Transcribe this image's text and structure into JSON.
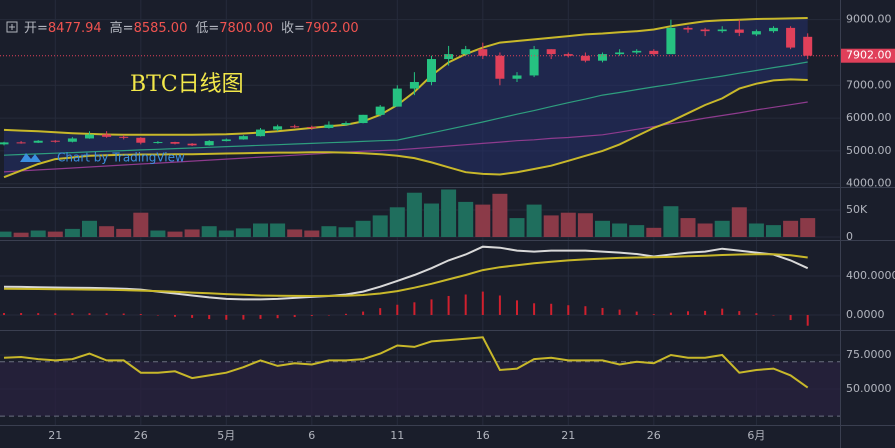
{
  "header": [
    {
      "label": "开=",
      "value": "8477.94"
    },
    {
      "label": "高=",
      "value": "8585.00"
    },
    {
      "label": "低=",
      "value": "7800.00"
    },
    {
      "label": "收=",
      "value": "7902.00"
    }
  ],
  "chart_data": [
    {
      "type": "candlestick",
      "title": "BTC日线图",
      "credit": "Chart by TradingView",
      "categories": [
        null,
        null,
        null,
        "21",
        null,
        null,
        null,
        null,
        "26",
        null,
        null,
        null,
        null,
        "5月",
        null,
        null,
        null,
        null,
        "6",
        null,
        null,
        null,
        null,
        "11",
        null,
        null,
        null,
        null,
        "16",
        null,
        null,
        null,
        null,
        "21",
        null,
        null,
        null,
        null,
        "26",
        null,
        null,
        null,
        null,
        null,
        "6月",
        null,
        null,
        null
      ],
      "open": [
        5200,
        5260,
        5250,
        5310,
        5280,
        5380,
        5500,
        5430,
        5400,
        5250,
        5270,
        5220,
        5170,
        5300,
        5350,
        5450,
        5650,
        5750,
        5730,
        5700,
        5800,
        5850,
        6100,
        6350,
        6900,
        7100,
        7800,
        7950,
        8100,
        7900,
        7200,
        7300,
        8100,
        7950,
        7900,
        7750,
        7950,
        8000,
        8050,
        7950,
        8750,
        8700,
        8650,
        8700,
        8550,
        8650,
        8750,
        8477.94
      ],
      "high": [
        5280,
        5300,
        5330,
        5330,
        5420,
        5600,
        5600,
        5480,
        5420,
        5300,
        5280,
        5240,
        5330,
        5380,
        5480,
        5700,
        5800,
        5800,
        5770,
        5900,
        5900,
        6100,
        6400,
        7000,
        7400,
        7900,
        8200,
        8200,
        8300,
        8000,
        7400,
        8200,
        8100,
        8000,
        8000,
        8000,
        8100,
        8100,
        8100,
        9000,
        8800,
        8750,
        8800,
        9000,
        8700,
        8800,
        8800,
        8585
      ],
      "low": [
        5170,
        5220,
        5240,
        5250,
        5260,
        5370,
        5400,
        5350,
        5200,
        5220,
        5200,
        5150,
        5160,
        5290,
        5340,
        5440,
        5600,
        5700,
        5640,
        5680,
        5760,
        5840,
        6050,
        6350,
        6700,
        7000,
        7600,
        7900,
        7800,
        7000,
        7100,
        7250,
        7800,
        7850,
        7700,
        7700,
        7900,
        7950,
        7900,
        7950,
        8600,
        8500,
        8600,
        8500,
        8500,
        8600,
        8100,
        7800
      ],
      "close": [
        5260,
        5250,
        5310,
        5280,
        5380,
        5500,
        5430,
        5400,
        5250,
        5270,
        5220,
        5170,
        5300,
        5350,
        5450,
        5650,
        5750,
        5730,
        5700,
        5800,
        5850,
        6100,
        6350,
        6900,
        7100,
        7800,
        7950,
        8100,
        7900,
        7200,
        7300,
        8100,
        7950,
        7900,
        7750,
        7950,
        8000,
        8050,
        7950,
        8750,
        8700,
        8650,
        8700,
        8600,
        8650,
        8750,
        8150,
        7902
      ],
      "up_color": "#26c281",
      "down_color": "#e0405a",
      "band": {
        "color": "#c8b82a",
        "fill": "#24306a",
        "upper": [
          5640,
          5620,
          5600,
          5570,
          5540,
          5520,
          5500,
          5490,
          5490,
          5490,
          5490,
          5490,
          5500,
          5510,
          5530,
          5560,
          5600,
          5650,
          5700,
          5750,
          5800,
          5900,
          6100,
          6400,
          6800,
          7300,
          7700,
          7950,
          8150,
          8300,
          8350,
          8400,
          8450,
          8500,
          8550,
          8580,
          8620,
          8650,
          8700,
          8800,
          8880,
          8950,
          8980,
          9000,
          9020,
          9030,
          9040,
          9050
        ],
        "lower": [
          4200,
          4400,
          4600,
          4750,
          4800,
          4850,
          4870,
          4880,
          4890,
          4890,
          4900,
          4900,
          4910,
          4920,
          4930,
          4940,
          4950,
          4950,
          4960,
          4960,
          4950,
          4930,
          4900,
          4850,
          4780,
          4650,
          4500,
          4350,
          4300,
          4280,
          4350,
          4450,
          4550,
          4700,
          4850,
          5000,
          5200,
          5450,
          5700,
          5900,
          6150,
          6400,
          6600,
          6900,
          7050,
          7150,
          7180,
          7160
        ]
      },
      "overlays": [
        {
          "color": "#2e9e7e",
          "values": [
            4870,
            4890,
            4910,
            4930,
            4950,
            4970,
            4990,
            5010,
            5030,
            5050,
            5070,
            5090,
            5110,
            5130,
            5150,
            5170,
            5190,
            5210,
            5230,
            5250,
            5270,
            5290,
            5310,
            5330,
            5440,
            5550,
            5660,
            5770,
            5880,
            6000,
            6120,
            6230,
            6350,
            6470,
            6580,
            6700,
            6780,
            6870,
            6950,
            7030,
            7120,
            7200,
            7280,
            7370,
            7450,
            7540,
            7620,
            7710
          ]
        },
        {
          "color": "#8e3b8e",
          "values": [
            4360,
            4390,
            4420,
            4450,
            4480,
            4510,
            4540,
            4570,
            4600,
            4630,
            4660,
            4690,
            4720,
            4750,
            4780,
            4810,
            4840,
            4870,
            4900,
            4930,
            4960,
            4990,
            5010,
            5030,
            5070,
            5110,
            5150,
            5190,
            5230,
            5270,
            5310,
            5340,
            5380,
            5410,
            5450,
            5490,
            5570,
            5660,
            5740,
            5830,
            5910,
            6000,
            6080,
            6160,
            6250,
            6330,
            6410,
            6490
          ]
        }
      ],
      "last_price": {
        "value": 7902,
        "label": "7902.00",
        "color": "#e0405a"
      },
      "ylim": [
        3900,
        9600
      ],
      "yticks": [
        {
          "value": 4000,
          "label": "4000.00"
        },
        {
          "value": 5000,
          "label": "5000.00"
        },
        {
          "value": 6000,
          "label": "6000.00"
        },
        {
          "value": 7000,
          "label": "7000.00"
        },
        {
          "value": 9000,
          "label": "9000.00"
        }
      ]
    },
    {
      "type": "bar",
      "up_color": "#1f6e5d",
      "down_color": "#8b3a48",
      "values": [
        10000,
        8000,
        12000,
        10000,
        15000,
        30000,
        20000,
        15000,
        45000,
        12000,
        10000,
        14000,
        20000,
        12000,
        16000,
        25000,
        25000,
        14000,
        12000,
        20000,
        18000,
        30000,
        40000,
        55000,
        82000,
        62000,
        88000,
        65000,
        60000,
        80000,
        35000,
        60000,
        40000,
        45000,
        44000,
        30000,
        25000,
        22000,
        17000,
        57000,
        35000,
        25000,
        30000,
        55000,
        25000,
        22000,
        30000,
        35000
      ],
      "ylim": [
        0,
        92600
      ],
      "yticks": [
        0,
        {
          "value": 50000,
          "label": "50K"
        }
      ]
    },
    {
      "type": "line",
      "series": [
        {
          "color": "#d9d9d9",
          "values": [
            290,
            288,
            285,
            282,
            280,
            278,
            275,
            270,
            260,
            240,
            220,
            200,
            180,
            165,
            160,
            160,
            165,
            175,
            185,
            195,
            210,
            240,
            290,
            350,
            410,
            480,
            560,
            620,
            700,
            690,
            660,
            650,
            660,
            660,
            660,
            650,
            640,
            625,
            600,
            620,
            640,
            650,
            680,
            660,
            640,
            620,
            560,
            480
          ]
        },
        {
          "color": "#c8b82a",
          "values": [
            270,
            268,
            266,
            264,
            262,
            260,
            258,
            255,
            250,
            245,
            238,
            230,
            222,
            214,
            207,
            200,
            198,
            196,
            195,
            196,
            198,
            205,
            220,
            245,
            280,
            320,
            365,
            410,
            460,
            490,
            510,
            530,
            545,
            560,
            570,
            578,
            585,
            590,
            592,
            596,
            602,
            608,
            615,
            620,
            622,
            622,
            612,
            590
          ]
        }
      ],
      "histogram": {
        "color": "#d0202e",
        "values": [
          20,
          20,
          19,
          18,
          18,
          18,
          17,
          15,
          10,
          -5,
          -18,
          -30,
          -42,
          -49,
          -47,
          -40,
          -33,
          -21,
          -10,
          -1,
          12,
          35,
          70,
          105,
          130,
          160,
          195,
          210,
          240,
          200,
          150,
          120,
          115,
          100,
          90,
          72,
          55,
          35,
          8,
          24,
          38,
          42,
          65,
          40,
          18,
          -2,
          -52,
          -110
        ]
      },
      "ylim": [
        -154,
        769
      ],
      "yticks": [
        {
          "value": 0,
          "label": "0.0000"
        },
        {
          "value": 400,
          "label": "400.0000"
        }
      ]
    },
    {
      "type": "line",
      "series": [
        {
          "color": "#c8b82a",
          "values": [
            73,
            73.5,
            72,
            71,
            72,
            76,
            71,
            71,
            62,
            62,
            63,
            58,
            60,
            62,
            66,
            71,
            67,
            69,
            68,
            71,
            71,
            72,
            76,
            82,
            81,
            85,
            86,
            87,
            88,
            64,
            65,
            72,
            73,
            71,
            71,
            71,
            68,
            70,
            69,
            75,
            73,
            73,
            75,
            62,
            64,
            65,
            60,
            51
          ]
        }
      ],
      "bands": [
        30,
        70
      ],
      "band_fill": "#2a2140",
      "ylim": [
        23.5,
        93.4
      ],
      "yticks": [
        {
          "value": 50,
          "label": "50.0000"
        },
        {
          "value": 75,
          "label": "75.0000"
        }
      ]
    }
  ]
}
